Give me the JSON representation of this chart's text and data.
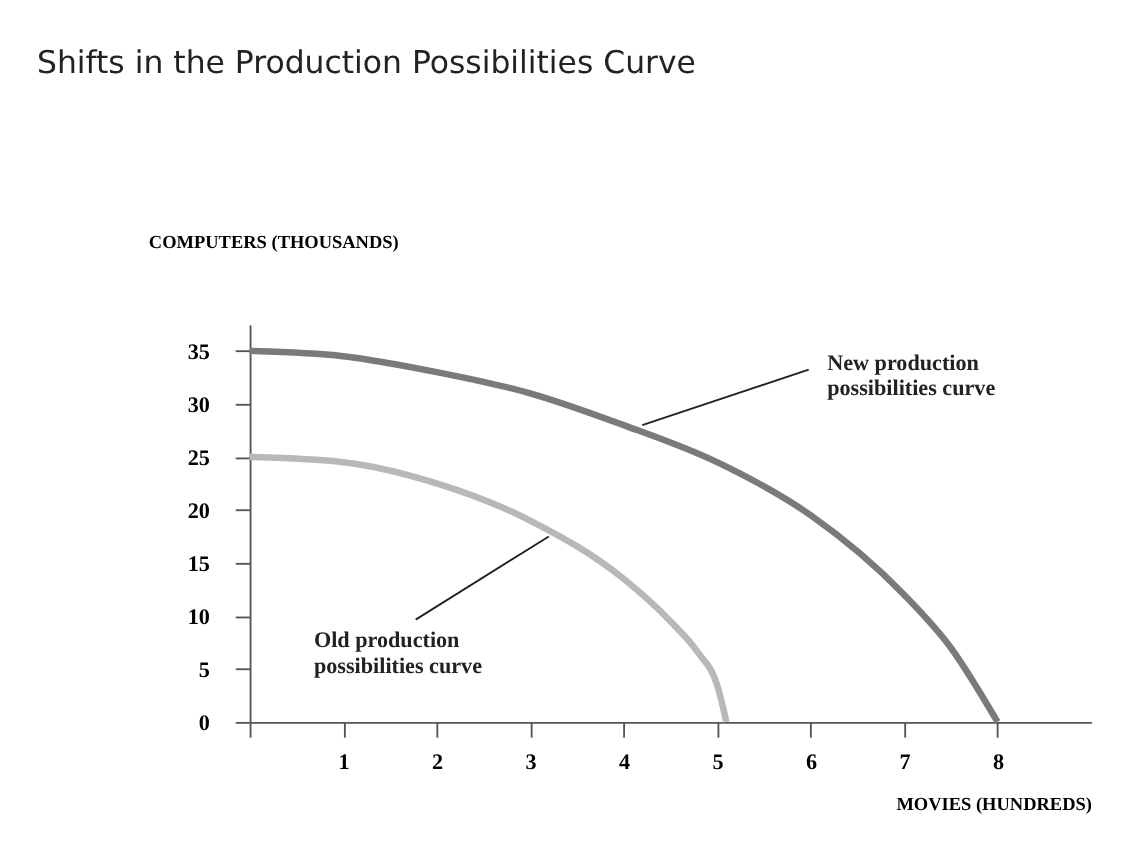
{
  "chart_data": {
    "type": "line",
    "title": "Shifts in the Production Possibilities Curve",
    "xlabel": "MOVIES (HUNDREDS)",
    "ylabel": "COMPUTERS (THOUSANDS)",
    "series": [
      {
        "color": "#b8b8b8",
        "x": [
          0,
          1,
          2,
          3,
          4,
          4.5,
          4.8,
          5,
          5.1
        ],
        "values": [
          25,
          24.5,
          22.5,
          19,
          13.5,
          9.5,
          6.5,
          3.5,
          0
        ]
      },
      {
        "color": "#7a7a7a",
        "x": [
          0,
          1,
          2,
          3,
          4,
          5,
          6,
          7,
          7.5,
          8
        ],
        "values": [
          35,
          34.5,
          33,
          31,
          28,
          24.5,
          19.5,
          12,
          7,
          0
        ]
      }
    ],
    "annotations": [
      {
        "text": "New production possibilities curve",
        "x": 4.2,
        "y": 28
      },
      {
        "text": "Old production possibilities curve",
        "x": 3.2,
        "y": 17.5
      }
    ],
    "xlim": [
      0,
      9
    ],
    "ylim": [
      0,
      37.5
    ],
    "xticks": [
      {
        "value": 0,
        "label": null
      },
      1,
      2,
      3,
      4,
      5,
      6,
      7,
      8
    ],
    "yticks": [
      0,
      5,
      10,
      15,
      20,
      25,
      30,
      35
    ],
    "grid": false,
    "line_style": "solid",
    "marker": "none"
  }
}
